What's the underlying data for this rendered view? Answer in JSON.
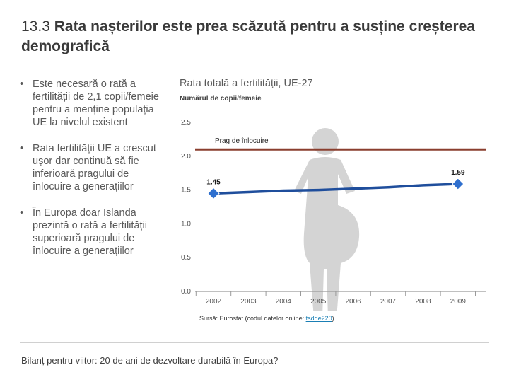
{
  "slide": {
    "title_number": "13.3",
    "title_text": "Rata nașterilor este prea scăzută pentru a susține creșterea demografică"
  },
  "bullets": [
    {
      "symbol": "•",
      "text": "Este necesară o rată a fertilității de 2,1 copii/femeie pentru a menține populația UE la nivelul existent"
    },
    {
      "symbol": "•",
      "text": "Rata fertilității UE a crescut ușor dar continuă să fie inferioară pragului de înlocuire a generațiilor"
    },
    {
      "symbol": "•",
      "text": "În Europa doar Islanda prezintă o rată a fertilității superioară pragului de înlocuire a generațiilor"
    }
  ],
  "source": {
    "prefix": "Sursă: Eurostat (codul datelor online: ",
    "code": "tsdde220",
    "suffix": ")"
  },
  "footer": "Bilanț pentru viitor: 20 de ani de dezvoltare durabilă în Europa?",
  "colors": {
    "series": "#1f4e9c",
    "marker": "#2e6fce",
    "threshold": "#8a3e2e",
    "figure": "#d4d4d4",
    "axis": "#9a9a9a"
  },
  "chart_data": {
    "type": "line",
    "title": "Rata totală a fertilității, UE-27",
    "ylabel": "Numărul de copii/femeie",
    "xlabel": "",
    "categories": [
      "2002",
      "2003",
      "2004",
      "2005",
      "2006",
      "2007",
      "2008",
      "2009"
    ],
    "y_ticks": [
      "0.0",
      "0.5",
      "1.0",
      "1.5",
      "2.0",
      "2.5"
    ],
    "ylim": [
      0,
      2.5
    ],
    "series": [
      {
        "name": "UE-27",
        "values": [
          1.45,
          1.47,
          1.49,
          1.5,
          1.52,
          1.54,
          1.57,
          1.59
        ]
      }
    ],
    "markers": [
      {
        "index": 0,
        "value": 1.45,
        "label": "1.45"
      },
      {
        "index": 7,
        "value": 1.59,
        "label": "1.59"
      }
    ],
    "threshold": {
      "value": 2.1,
      "label": "Prag de înlocuire"
    },
    "grid": false,
    "background_pictogram": "pregnant-woman-icon"
  }
}
